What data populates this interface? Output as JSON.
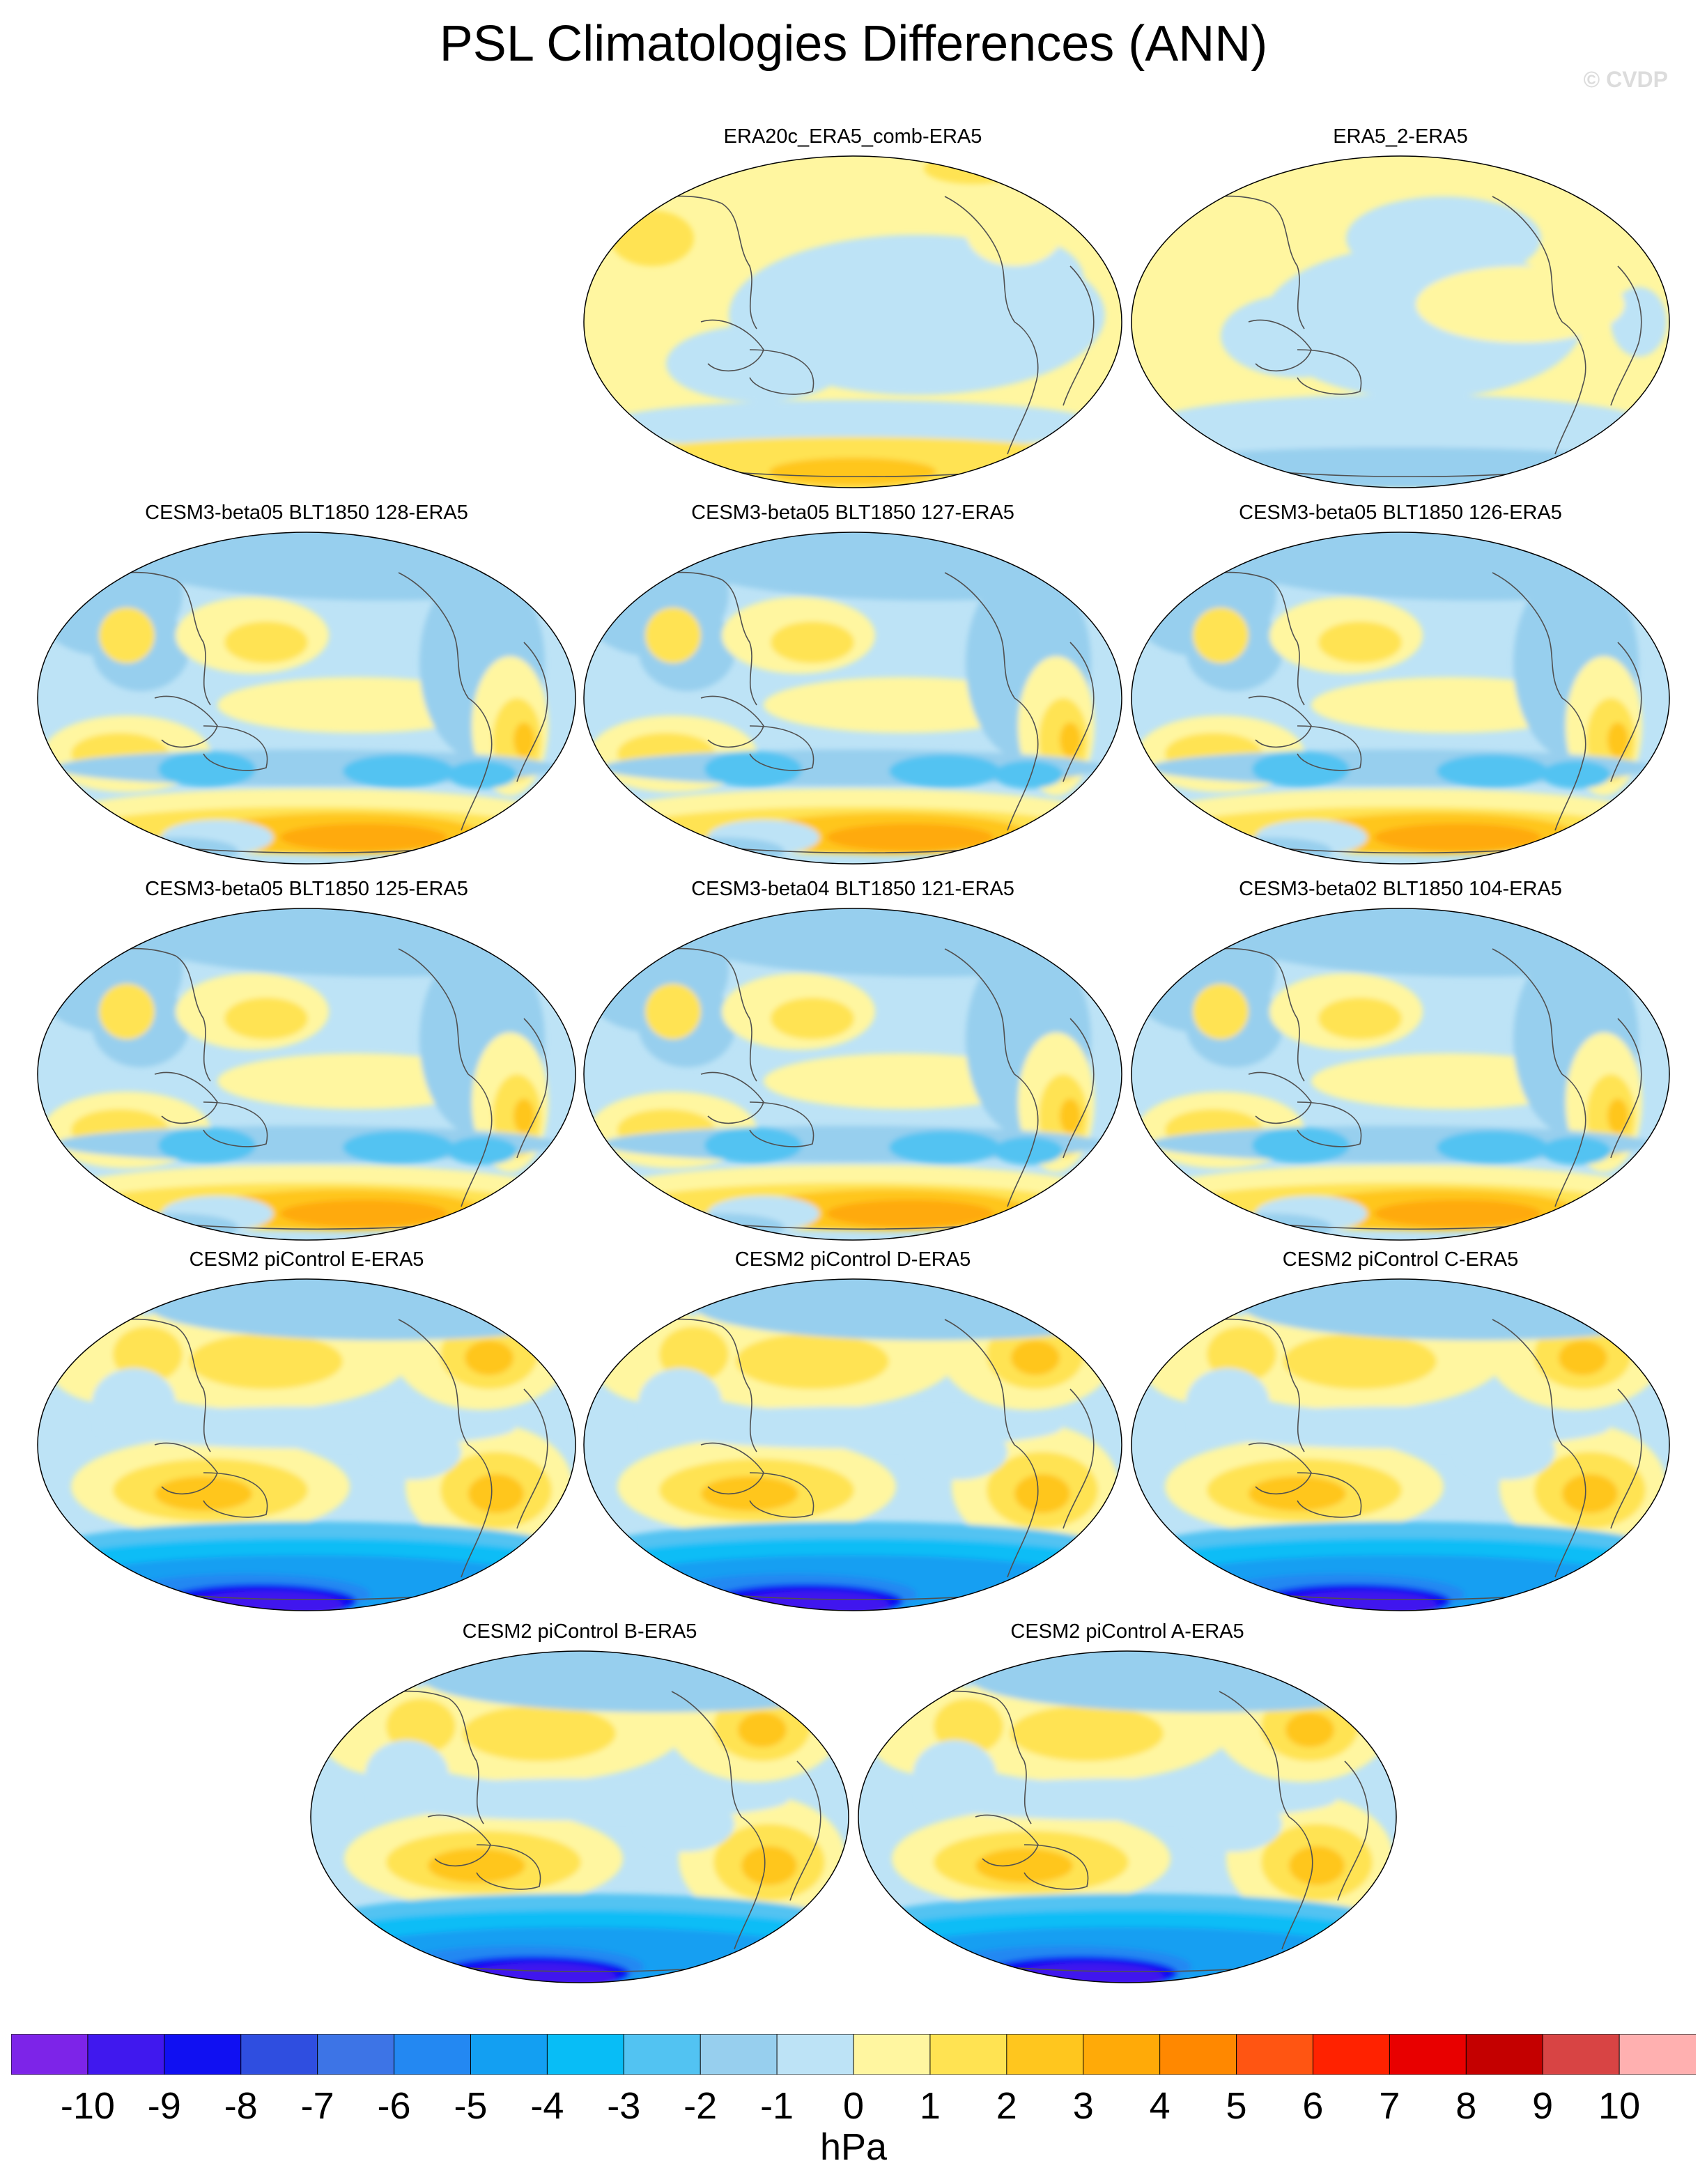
{
  "title": "PSL Climatologies Differences (ANN)",
  "watermark": "© CVDP",
  "colorbar": {
    "labels": [
      "-10",
      "-9",
      "-8",
      "-7",
      "-6",
      "-5",
      "-4",
      "-3",
      "-2",
      "-1",
      "0",
      "1",
      "2",
      "3",
      "4",
      "5",
      "6",
      "7",
      "8",
      "9",
      "10"
    ],
    "colors": [
      "#7d24e8",
      "#4018ee",
      "#1010f2",
      "#2f4ee0",
      "#3d74e6",
      "#2388f2",
      "#139ff2",
      "#08bdf6",
      "#52c3f2",
      "#97cfee",
      "#bde3f6",
      "#fff6a0",
      "#ffe352",
      "#ffc61e",
      "#ffaa08",
      "#ff8800",
      "#ff5512",
      "#ff2200",
      "#e80000",
      "#c40000",
      "#d84444",
      "#ffb0b0"
    ],
    "units": "hPa"
  },
  "panels": [
    {
      "title": "ERA20c_ERA5_comb-ERA5",
      "style": "reanalysis-a"
    },
    {
      "title": "ERA5_2-ERA5",
      "style": "reanalysis-b"
    },
    {
      "title": "CESM3-beta05 BLT1850 128-ERA5",
      "style": "cesm3"
    },
    {
      "title": "CESM3-beta05 BLT1850 127-ERA5",
      "style": "cesm3"
    },
    {
      "title": "CESM3-beta05 BLT1850 126-ERA5",
      "style": "cesm3"
    },
    {
      "title": "CESM3-beta05 BLT1850 125-ERA5",
      "style": "cesm3"
    },
    {
      "title": "CESM3-beta04 BLT1850 121-ERA5",
      "style": "cesm3"
    },
    {
      "title": "CESM3-beta02 BLT1850 104-ERA5",
      "style": "cesm3"
    },
    {
      "title": "CESM2 piControl E-ERA5",
      "style": "cesm2"
    },
    {
      "title": "CESM2 piControl D-ERA5",
      "style": "cesm2"
    },
    {
      "title": "CESM2 piControl C-ERA5",
      "style": "cesm2"
    },
    {
      "title": "CESM2 piControl B-ERA5",
      "style": "cesm2"
    },
    {
      "title": "CESM2 piControl A-ERA5",
      "style": "cesm2"
    }
  ]
}
